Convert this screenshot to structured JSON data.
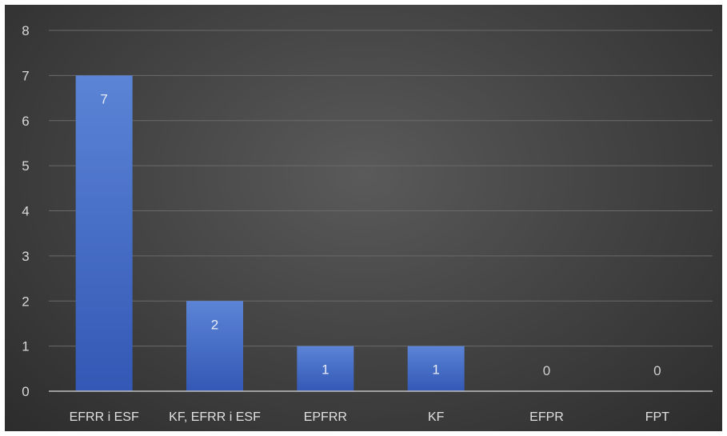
{
  "chart_data": {
    "type": "bar",
    "categories": [
      "EFRR i ESF",
      "KF, EFRR i ESF",
      "EPFRR",
      "KF",
      "EFPR",
      "FPT"
    ],
    "values": [
      7,
      2,
      1,
      1,
      0,
      0
    ],
    "data_labels": [
      "7",
      "2",
      "1",
      "1",
      "0",
      "0"
    ],
    "title": "",
    "xlabel": "",
    "ylabel": "",
    "ylim": [
      0,
      8
    ],
    "yticks": [
      "0",
      "1",
      "2",
      "3",
      "4",
      "5",
      "6",
      "7",
      "8"
    ],
    "grid": true,
    "legend": "none",
    "colors": {
      "bar_top": "#5b84d6",
      "bar_bottom": "#3358b5",
      "background_center": "#5a5a5a",
      "background_edge": "#2c2c2c"
    }
  }
}
